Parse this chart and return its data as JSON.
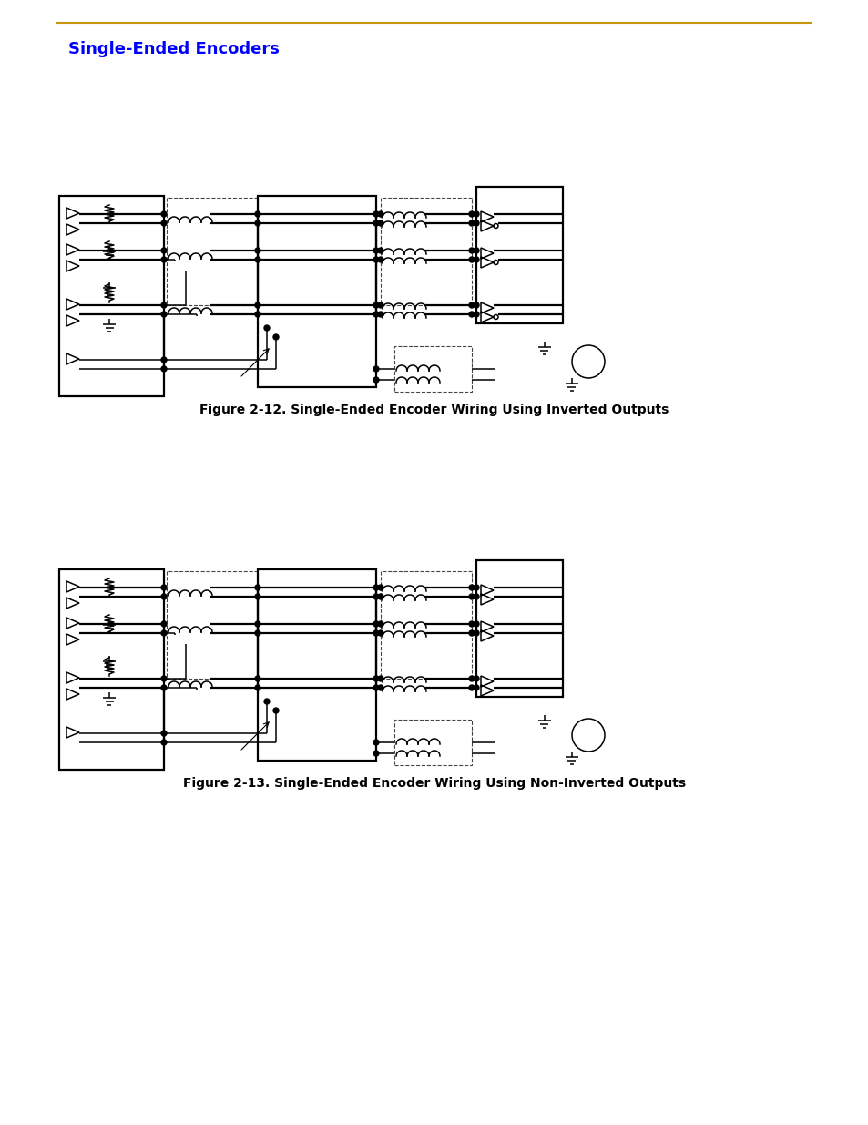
{
  "page_bg": "#ffffff",
  "top_line_color": "#c8960c",
  "title_text": "Single-Ended Encoders",
  "title_color": "#0000ff",
  "title_fontsize": 13,
  "fig1_caption": "Figure 2-12. Single-Ended Encoder Wiring Using Inverted Outputs",
  "fig2_caption": "Figure 2-13. Single-Ended Encoder Wiring Using Non-Inverted Outputs",
  "caption_fontsize": 10,
  "lc": "#000000"
}
